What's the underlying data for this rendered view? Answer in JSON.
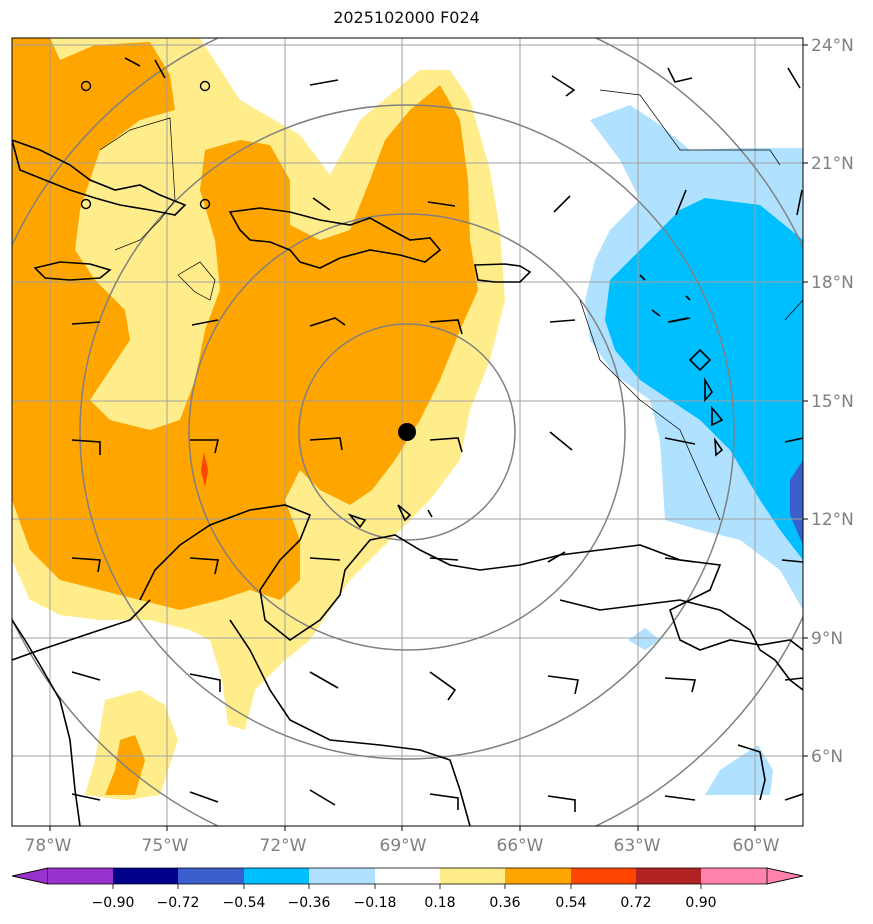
{
  "title": "2025102000 F024",
  "map": {
    "lon_labels": [
      "78°W",
      "75°W",
      "72°W",
      "69°W",
      "66°W",
      "63°W",
      "60°W"
    ],
    "lat_labels": [
      "24°N",
      "21°N",
      "18°N",
      "15°N",
      "12°N",
      "9°N",
      "6°N"
    ],
    "lon_range": [
      -79,
      -59
    ],
    "lat_range": [
      4.3,
      24.2
    ],
    "center_marker": {
      "lon": -69.1,
      "lat": 14.2
    },
    "range_rings_deg": [
      2.8,
      5.5,
      8.3,
      11.0
    ]
  },
  "colorbar": {
    "tick_labels": [
      "−0.90",
      "−0.72",
      "−0.54",
      "−0.36",
      "−0.18",
      "0.18",
      "0.36",
      "0.54",
      "0.72",
      "0.90"
    ],
    "colors": [
      "#9932cc",
      "#00008b",
      "#3a5fcd",
      "#00bfff",
      "#b0e2ff",
      "#ffffff",
      "#ffec8b",
      "#ffa500",
      "#ff4500",
      "#b22222",
      "#ff82ab"
    ]
  },
  "colors": {
    "frame": "#000000",
    "grid": "#a0a0a0",
    "ring": "#808080",
    "axis_label": "#808080",
    "coast": "#000000"
  }
}
